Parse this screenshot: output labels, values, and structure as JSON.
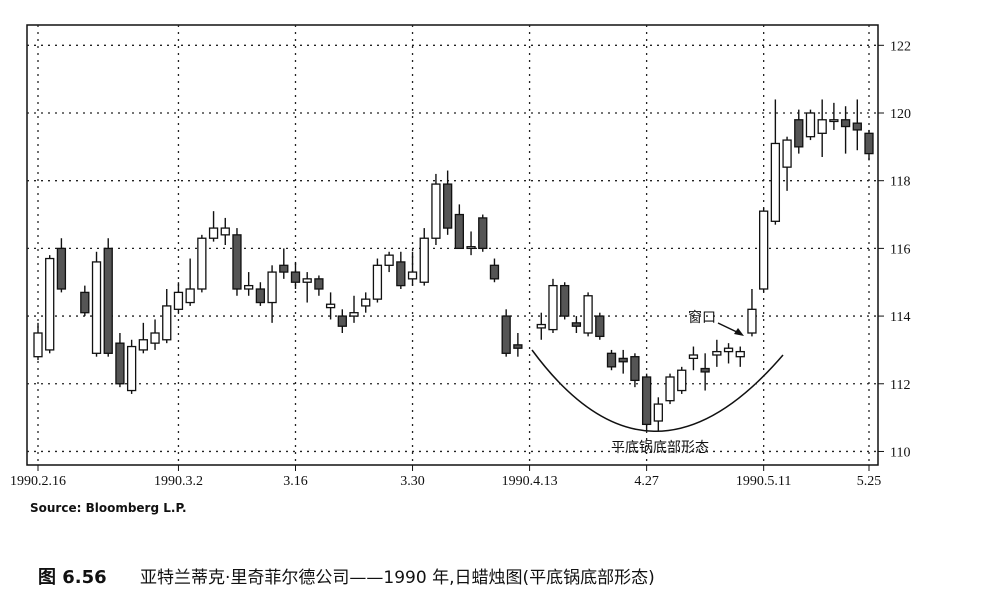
{
  "chart_data": {
    "type": "candlestick",
    "categories": [
      "1990.2.16",
      null,
      null,
      null,
      null,
      null,
      null,
      null,
      null,
      null,
      null,
      null,
      "1990.3.2",
      null,
      null,
      null,
      null,
      null,
      null,
      null,
      null,
      null,
      "3.16",
      null,
      null,
      null,
      null,
      null,
      null,
      null,
      null,
      null,
      "3.30",
      null,
      null,
      null,
      null,
      null,
      null,
      null,
      null,
      null,
      "1990.4.13",
      null,
      null,
      null,
      null,
      null,
      null,
      null,
      null,
      null,
      "4.27",
      null,
      null,
      null,
      null,
      null,
      null,
      null,
      null,
      null,
      "1990.5.11",
      null,
      null,
      null,
      null,
      null,
      null,
      null,
      null,
      "5.25"
    ],
    "open": [
      112.8,
      113,
      116,
      null,
      114.7,
      112.9,
      116,
      113.2,
      111.8,
      113,
      113.2,
      113.3,
      114.2,
      114.4,
      114.8,
      116.3,
      116.4,
      116.4,
      114.8,
      114.8,
      114.4,
      115.5,
      115.3,
      115,
      115.1,
      114.25,
      114,
      114,
      114.3,
      114.5,
      115.5,
      115.6,
      115.1,
      115,
      116.3,
      117.9,
      117,
      116,
      116.9,
      115.5,
      114,
      113.15,
      null,
      113.65,
      113.6,
      114.9,
      113.8,
      113.5,
      114,
      112.9,
      112.75,
      112.8,
      112.2,
      110.9,
      111.5,
      111.8,
      112.75,
      112.45,
      112.85,
      112.95,
      112.8,
      113.5,
      114.8,
      116.8,
      118.4,
      119.8,
      119.3,
      119.4,
      119.75,
      119.8,
      119.7,
      119.4
    ],
    "high": [
      113.8,
      115.8,
      116.3,
      null,
      114.9,
      115.9,
      116.3,
      113.5,
      113.3,
      113.8,
      113.9,
      114.8,
      115,
      115.7,
      116.4,
      117.1,
      116.9,
      116.6,
      115.3,
      115,
      115.5,
      116,
      115.6,
      115.3,
      115.2,
      114.7,
      114.2,
      114.6,
      114.7,
      115.7,
      115.9,
      115.9,
      115.9,
      116.6,
      118.2,
      118.3,
      117.3,
      116.5,
      117,
      115.7,
      114.2,
      113.5,
      null,
      114.1,
      115.1,
      115,
      114,
      114.7,
      114.1,
      113,
      113,
      112.9,
      112.3,
      111.6,
      112.3,
      112.5,
      113.1,
      112.9,
      113.3,
      113.2,
      113.1,
      114.8,
      117.2,
      120.4,
      119.3,
      120.1,
      120.1,
      120.4,
      120.3,
      120.2,
      120.4,
      119.5
    ],
    "low": [
      112.7,
      112.9,
      114.7,
      null,
      114,
      112.8,
      112.8,
      111.9,
      111.7,
      112.9,
      113,
      113.2,
      114.1,
      114.3,
      114.7,
      116.2,
      116.1,
      114.6,
      114.6,
      114.3,
      113.8,
      115.1,
      114.8,
      114.4,
      114.6,
      113.9,
      113.5,
      113.8,
      114.1,
      114.4,
      115.3,
      114.8,
      114.9,
      114.9,
      116.1,
      116.4,
      116,
      115.8,
      115.9,
      115,
      112.8,
      112.8,
      null,
      113.3,
      113.5,
      113.9,
      113.5,
      113.4,
      113.3,
      112.4,
      112.3,
      111.9,
      110.6,
      110.6,
      111.4,
      111.7,
      112.4,
      111.8,
      112.5,
      112.6,
      112.5,
      113.4,
      114.7,
      116.7,
      117.7,
      118.8,
      119.2,
      118.7,
      119.5,
      118.8,
      118.9,
      118.6
    ],
    "close": [
      113.5,
      115.7,
      114.8,
      null,
      114.1,
      115.6,
      112.9,
      112,
      113.1,
      113.3,
      113.5,
      114.3,
      114.7,
      114.8,
      116.3,
      116.6,
      116.6,
      114.8,
      114.9,
      114.4,
      115.3,
      115.3,
      115,
      115.1,
      114.8,
      114.35,
      113.7,
      114.1,
      114.5,
      115.5,
      115.8,
      114.9,
      115.3,
      116.3,
      117.9,
      116.6,
      116,
      116.05,
      116,
      115.1,
      112.9,
      113.05,
      null,
      113.75,
      114.9,
      114,
      113.7,
      114.6,
      113.4,
      112.5,
      112.65,
      112.1,
      110.8,
      111.4,
      112.2,
      112.4,
      112.85,
      112.35,
      112.95,
      113.05,
      112.95,
      114.2,
      117.1,
      119.1,
      119.2,
      119,
      120,
      119.8,
      119.8,
      119.6,
      119.5,
      118.8
    ],
    "ylim": [
      109.6,
      122.6
    ],
    "yticks": [
      110,
      112,
      114,
      116,
      118,
      120,
      122
    ],
    "grid": true,
    "annotations": {
      "window": "窗口",
      "pattern": "平底锅底部形态"
    },
    "source": "Source: Bloomberg L.P.",
    "figure_label": "图 6.56",
    "caption": "亚特兰蒂克·里奇菲尔德公司——1990 年,日蜡烛图(平底锅底部形态)"
  }
}
